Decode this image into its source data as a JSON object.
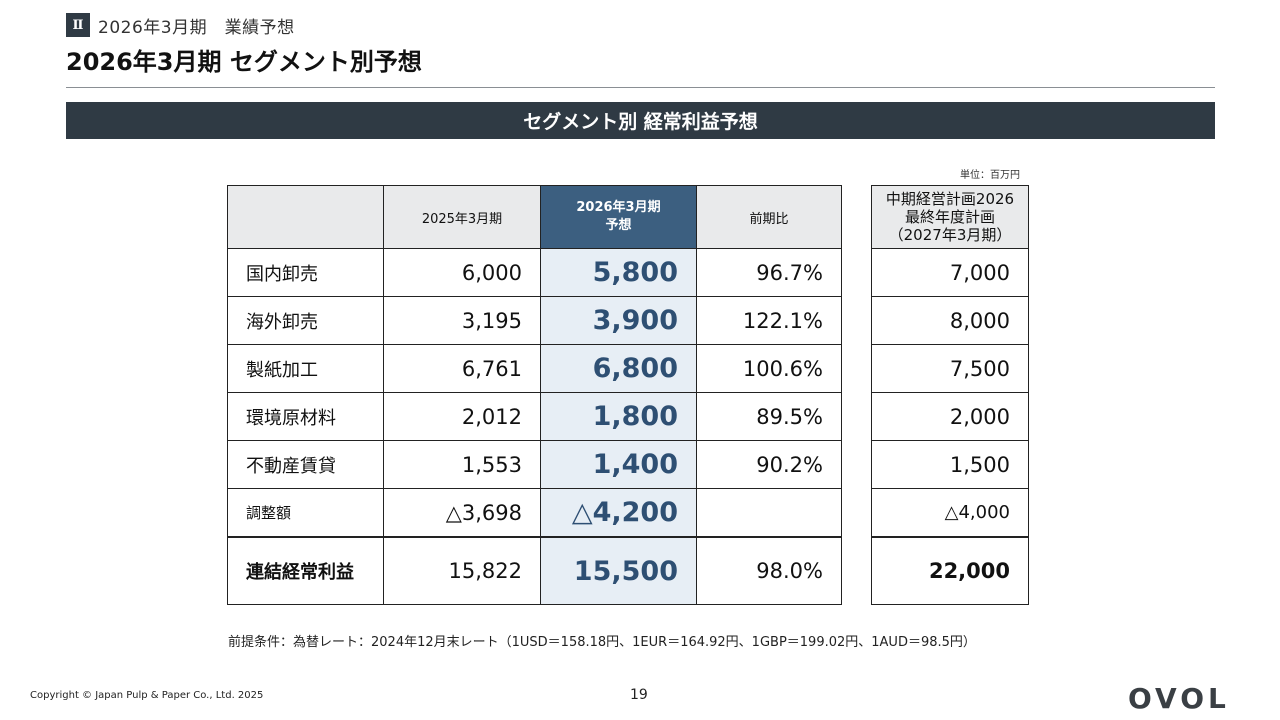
{
  "section": {
    "roman": "Ⅱ",
    "label": "2026年3月期　業績予想"
  },
  "title": "2026年3月期 セグメント別予想",
  "banner": "セグメント別 経常利益予想",
  "unit": "単位：百万円",
  "main_table": {
    "headers": {
      "segment": "",
      "prev": "2025年3月期",
      "forecast_line1": "2026年3月期",
      "forecast_line2": "予想",
      "ratio": "前期比"
    },
    "rows": [
      {
        "segment": "国内卸売",
        "prev": "6,000",
        "forecast": "5,800",
        "ratio": "96.7%"
      },
      {
        "segment": "海外卸売",
        "prev": "3,195",
        "forecast": "3,900",
        "ratio": "122.1%"
      },
      {
        "segment": "製紙加工",
        "prev": "6,761",
        "forecast": "6,800",
        "ratio": "100.6%"
      },
      {
        "segment": "環境原材料",
        "prev": "2,012",
        "forecast": "1,800",
        "ratio": "89.5%"
      },
      {
        "segment": "不動産賃貸",
        "prev": "1,553",
        "forecast": "1,400",
        "ratio": "90.2%"
      },
      {
        "segment": "調整額",
        "prev": "△3,698",
        "forecast": "△4,200",
        "ratio": ""
      }
    ],
    "total": {
      "segment": "連結経常利益",
      "prev": "15,822",
      "forecast": "15,500",
      "ratio": "98.0%"
    }
  },
  "plan_table": {
    "header_line1": "中期経営計画2026",
    "header_line2": "最終年度計画",
    "header_line3": "（2027年3月期）",
    "rows": [
      "7,000",
      "8,000",
      "7,500",
      "2,000",
      "1,500",
      "△4,000"
    ],
    "total": "22,000"
  },
  "footnote": "前提条件：為替レート：2024年12月末レート（1USD＝158.18円、1EUR＝164.92円、1GBP＝199.02円、1AUD＝98.5円）",
  "copyright": "Copyright © Japan Pulp & Paper Co., Ltd. 2025",
  "page_number": "19",
  "logo_text": "OVOL",
  "colors": {
    "banner": "#2f3a44",
    "forecast_header": "#3c5f80",
    "forecast_cell": "#e7eef5",
    "forecast_text": "#2e4f73"
  }
}
